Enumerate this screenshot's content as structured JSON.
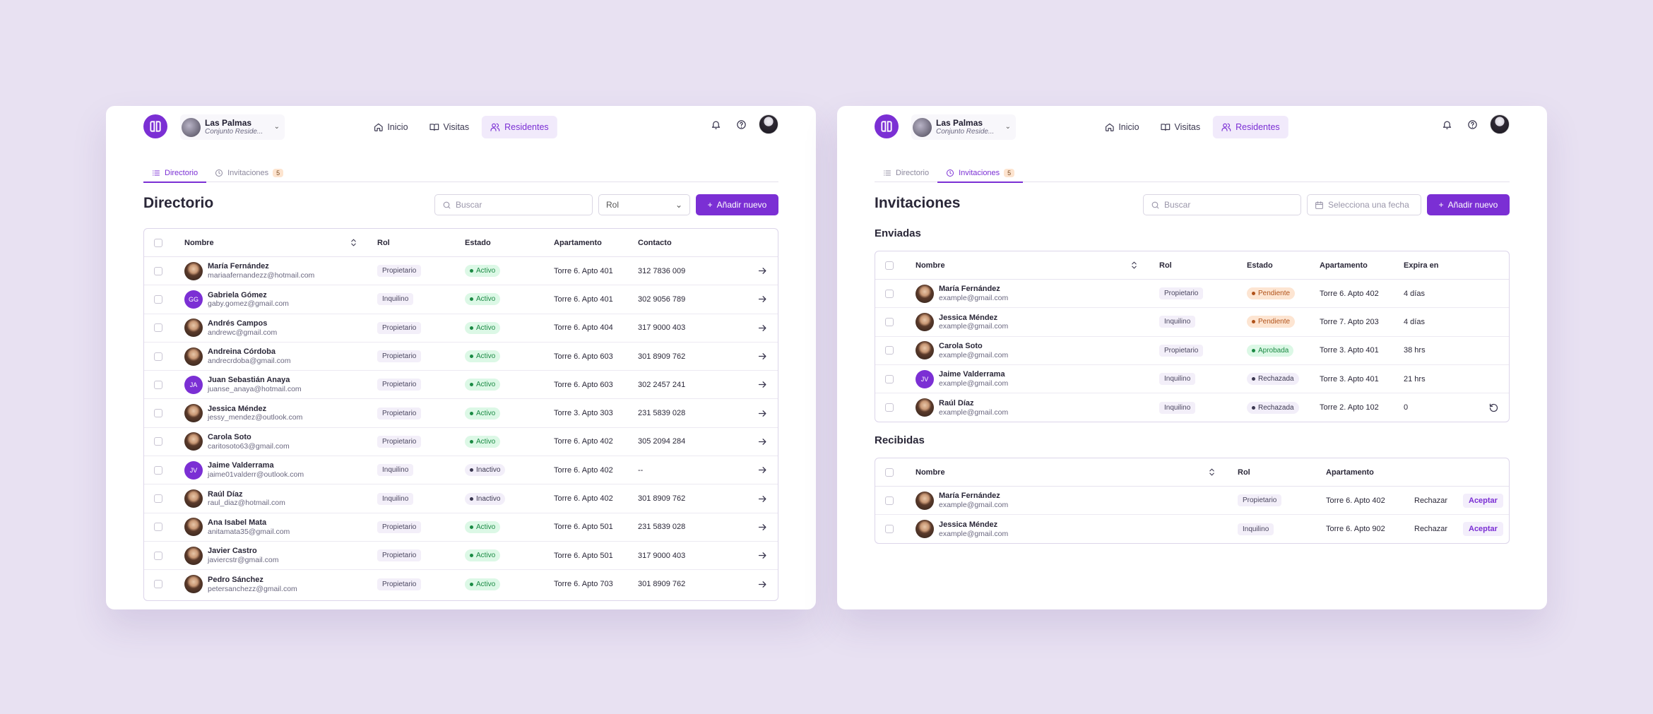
{
  "colors": {
    "accent": "#7b2fd4",
    "background": "#e8e1f2",
    "active_status": "#1b8a44",
    "pending_status": "#b0521a"
  },
  "header": {
    "community_name": "Las Palmas",
    "community_type": "Conjunto Reside...",
    "nav": [
      {
        "label": "Inicio",
        "icon": "home-icon"
      },
      {
        "label": "Visitas",
        "icon": "book-icon"
      },
      {
        "label": "Residentes",
        "icon": "users-icon"
      }
    ]
  },
  "left": {
    "tabs": [
      {
        "label": "Directorio"
      },
      {
        "label": "Invitaciones",
        "badge": "5"
      }
    ],
    "title": "Directorio",
    "search_placeholder": "Buscar",
    "role_select": "Rol",
    "add_button": "Añadir nuevo",
    "columns": {
      "name": "Nombre",
      "role": "Rol",
      "status": "Estado",
      "apartment": "Apartamento",
      "contact": "Contacto"
    },
    "rows": [
      {
        "name": "María Fernández",
        "email": "mariaafernandezz@hotmail.com",
        "role": "Propietario",
        "status": "Activo",
        "apartment": "Torre 6. Apto 401",
        "contact": "312 7836 009",
        "avatar": "photo"
      },
      {
        "name": "Gabriela Gómez",
        "email": "gaby.gomez@gmail.com",
        "role": "Inquilino",
        "status": "Activo",
        "apartment": "Torre 6. Apto 401",
        "contact": "302 9056 789",
        "avatar": "GG"
      },
      {
        "name": "Andrés Campos",
        "email": "andrewc@gmail.com",
        "role": "Propietario",
        "status": "Activo",
        "apartment": "Torre 6. Apto 404",
        "contact": "317 9000 403",
        "avatar": "photo"
      },
      {
        "name": "Andreina Córdoba",
        "email": "andrecrdoba@gmail.com",
        "role": "Propietario",
        "status": "Activo",
        "apartment": "Torre 6. Apto 603",
        "contact": "301 8909 762",
        "avatar": "photo"
      },
      {
        "name": "Juan Sebastián Anaya",
        "email": "juanse_anaya@hotmail.com",
        "role": "Propietario",
        "status": "Activo",
        "apartment": "Torre 6. Apto 603",
        "contact": "302 2457 241",
        "avatar": "JA"
      },
      {
        "name": "Jessica Méndez",
        "email": "jessy_mendez@outlook.com",
        "role": "Propietario",
        "status": "Activo",
        "apartment": "Torre 3. Apto 303",
        "contact": "231 5839 028",
        "avatar": "photo"
      },
      {
        "name": "Carola Soto",
        "email": "caritosoto63@gmail.com",
        "role": "Propietario",
        "status": "Activo",
        "apartment": "Torre 6. Apto 402",
        "contact": "305 2094 284",
        "avatar": "photo"
      },
      {
        "name": "Jaime Valderrama",
        "email": "jaime01valderr@outlook.com",
        "role": "Inquilino",
        "status": "Inactivo",
        "apartment": "Torre 6. Apto 402",
        "contact": "--",
        "avatar": "JV"
      },
      {
        "name": "Raúl Díaz",
        "email": "raul_diaz@hotmail.com",
        "role": "Inquilino",
        "status": "Inactivo",
        "apartment": "Torre 6. Apto 402",
        "contact": "301 8909 762",
        "avatar": "photo"
      },
      {
        "name": "Ana Isabel Mata",
        "email": "anitamata35@gmail.com",
        "role": "Propietario",
        "status": "Activo",
        "apartment": "Torre 6. Apto 501",
        "contact": "231 5839 028",
        "avatar": "photo"
      },
      {
        "name": "Javier Castro",
        "email": "javiercstr@gmail.com",
        "role": "Propietario",
        "status": "Activo",
        "apartment": "Torre 6. Apto 501",
        "contact": "317 9000 403",
        "avatar": "photo"
      },
      {
        "name": "Pedro Sánchez",
        "email": "petersanchezz@gmail.com",
        "role": "Propietario",
        "status": "Activo",
        "apartment": "Torre 6. Apto 703",
        "contact": "301 8909 762",
        "avatar": "photo"
      }
    ]
  },
  "right": {
    "tabs": [
      {
        "label": "Directorio"
      },
      {
        "label": "Invitaciones",
        "badge": "5"
      }
    ],
    "title": "Invitaciones",
    "search_placeholder": "Buscar",
    "date_placeholder": "Selecciona una fecha",
    "add_button": "Añadir nuevo",
    "sent_title": "Enviadas",
    "sent_columns": {
      "name": "Nombre",
      "role": "Rol",
      "status": "Estado",
      "apartment": "Apartamento",
      "expires": "Expira en"
    },
    "sent_rows": [
      {
        "name": "María Fernández",
        "email": "example@gmail.com",
        "role": "Propietario",
        "status": "Pendiente",
        "apartment": "Torre 6. Apto 402",
        "expires": "4 días",
        "avatar": "photo"
      },
      {
        "name": "Jessica Méndez",
        "email": "example@gmail.com",
        "role": "Inquilino",
        "status": "Pendiente",
        "apartment": "Torre 7. Apto 203",
        "expires": "4 días",
        "avatar": "photo"
      },
      {
        "name": "Carola Soto",
        "email": "example@gmail.com",
        "role": "Propietario",
        "status": "Aprobada",
        "apartment": "Torre 3. Apto 401",
        "expires": "38 hrs",
        "avatar": "photo"
      },
      {
        "name": "Jaime Valderrama",
        "email": "example@gmail.com",
        "role": "Inquilino",
        "status": "Rechazada",
        "apartment": "Torre 3. Apto 401",
        "expires": "21 hrs",
        "avatar": "JV"
      },
      {
        "name": "Raúl Díaz",
        "email": "example@gmail.com",
        "role": "Inquilino",
        "status": "Rechazada",
        "apartment": "Torre 2. Apto 102",
        "expires": "0",
        "avatar": "photo"
      }
    ],
    "received_title": "Recibidas",
    "received_columns": {
      "name": "Nombre",
      "role": "Rol",
      "apartment": "Apartamento"
    },
    "received_rows": [
      {
        "name": "María Fernández",
        "email": "example@gmail.com",
        "role": "Propietario",
        "apartment": "Torre 6. Apto 402",
        "reject": "Rechazar",
        "accept": "Aceptar",
        "avatar": "photo"
      },
      {
        "name": "Jessica Méndez",
        "email": "example@gmail.com",
        "role": "Inquilino",
        "apartment": "Torre 6. Apto 902",
        "reject": "Rechazar",
        "accept": "Aceptar",
        "avatar": "photo"
      }
    ]
  }
}
